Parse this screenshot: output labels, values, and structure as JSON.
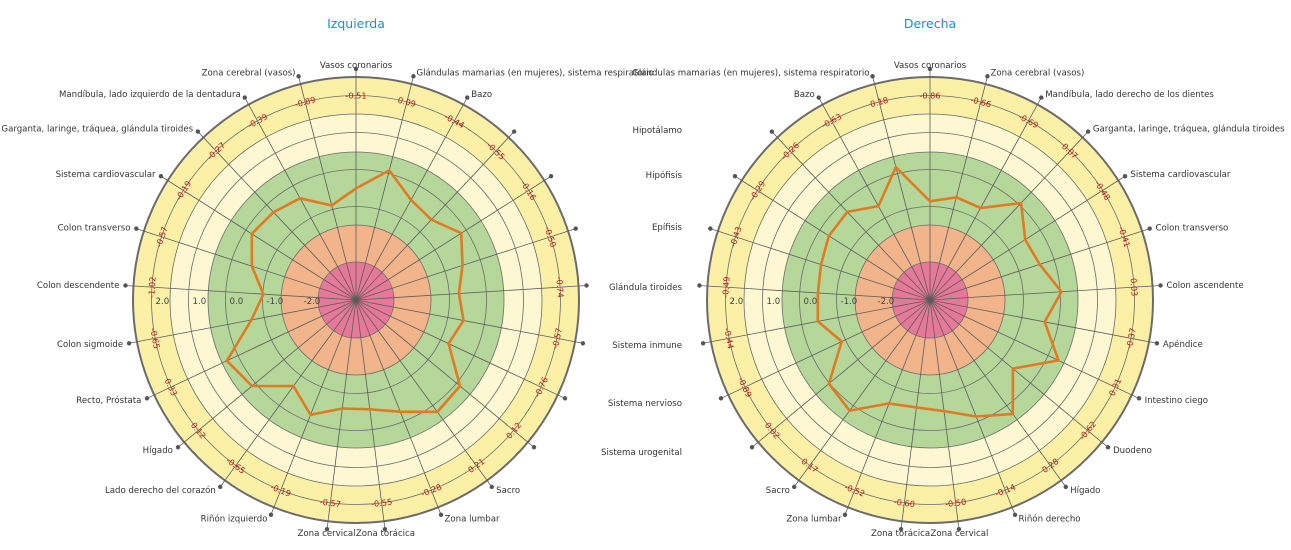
{
  "chart_data": [
    {
      "type": "radar",
      "title": "Izquierda",
      "ring_labels": [
        "2.0",
        "1.0",
        "0.0",
        "-1.0",
        "-2.0"
      ],
      "zones_colors": [
        "#e6789a",
        "#f2b48a",
        "#b5d79a",
        "#fdf7d2",
        "#fbf0a6"
      ],
      "line_color": "#e07b24",
      "categories": [
        "Vasos coronarios",
        "Glándulas mamarias (en mujeres), sistema respiratorio",
        "Bazo",
        "",
        "",
        "",
        "",
        "",
        "",
        "",
        "Sacro",
        "Zona lumbar",
        "Zona torácica",
        "Zona cervical",
        "Riñón izquierdo",
        "Lado derecho del corazón",
        "Hígado",
        "Recto, Próstata",
        "Colon sigmoide",
        "Colon descendente",
        "Colon transverso",
        "Sistema cardiovascular",
        "Garganta, laringe, tráquea, glándula tiroides",
        "Mandíbula, lado izquierdo de la dentadura",
        "Zona cerebral (vasos)"
      ],
      "values": [
        -0.51,
        0.09,
        -0.44,
        -0.55,
        -0.16,
        -0.5,
        -0.74,
        -0.57,
        -0.76,
        0.12,
        0.21,
        -0.28,
        -0.55,
        -0.57,
        -0.19,
        -0.65,
        0.12,
        0.33,
        -0.65,
        -1.02,
        -0.57,
        -0.19,
        -0.27,
        -0.39,
        -0.89
      ]
    },
    {
      "type": "radar",
      "title": "Derecha",
      "ring_labels": [
        "2.0",
        "1.0",
        "0.0",
        "-1.0",
        "-2.0"
      ],
      "zones_colors": [
        "#e6789a",
        "#f2b48a",
        "#b5d79a",
        "#fdf7d2",
        "#fbf0a6"
      ],
      "line_color": "#e07b24",
      "categories": [
        "Vasos coronarios",
        "Zona cerebral (vasos)",
        "Mandíbula, lado derecho de los dientes",
        "Garganta, laringe, tráquea, glándula tiroides",
        "Sistema cardiovascular",
        "Colon transverso",
        "Colon ascendente",
        "Apéndice",
        "Intestino ciego",
        "Duodeno",
        "Hígado",
        "Riñón derecho",
        "Zona cervical",
        "Zona torácica",
        "Zona lumbar",
        "Sacro",
        "",
        "",
        "",
        "",
        "",
        "",
        "",
        "Bazo",
        "Glándulas mamarias (en mujeres), sistema respiratorio"
      ],
      "values": [
        -0.86,
        -0.66,
        -0.69,
        0.07,
        -0.48,
        -0.41,
        0.03,
        -0.37,
        0.31,
        -0.62,
        0.28,
        -0.14,
        -0.5,
        -0.6,
        -0.52,
        0.17,
        0.02,
        -0.89,
        -0.44,
        -0.49,
        -0.43,
        -0.29,
        -0.26,
        -0.63,
        0.18
      ]
    }
  ],
  "middle_labels": [
    "Hipotálamo",
    "Hipófisis",
    "Epífisis",
    "Glándula tiroides",
    "Sistema inmune",
    "Sistema nervioso",
    "Sistema urogenital"
  ]
}
